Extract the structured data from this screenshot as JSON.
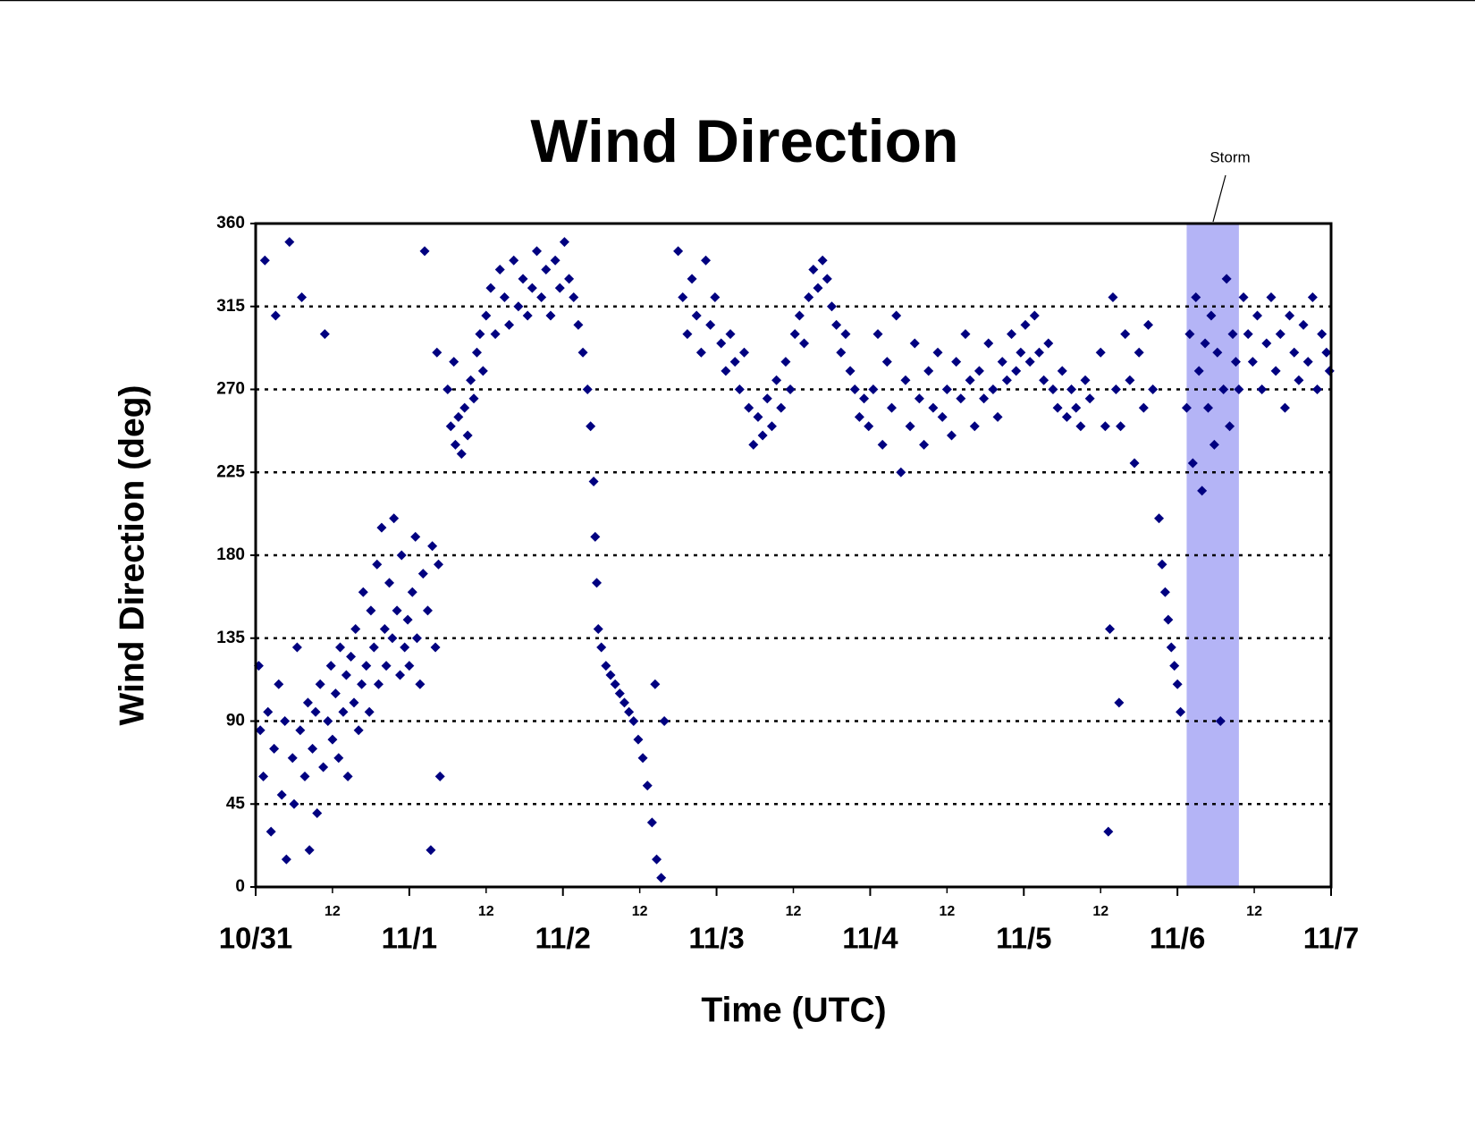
{
  "chart_data": {
    "type": "scatter",
    "title": "Wind Direction",
    "xlabel": "Time (UTC)",
    "ylabel": "Wind Direction (deg)",
    "xlim": [
      0,
      7
    ],
    "ylim": [
      0,
      360
    ],
    "xticks": [
      {
        "value": 0,
        "label": "10/31"
      },
      {
        "value": 1,
        "label": "11/1"
      },
      {
        "value": 2,
        "label": "11/2"
      },
      {
        "value": 3,
        "label": "11/3"
      },
      {
        "value": 4,
        "label": "11/4"
      },
      {
        "value": 5,
        "label": "11/5"
      },
      {
        "value": 6,
        "label": "11/6"
      },
      {
        "value": 7,
        "label": "11/7"
      }
    ],
    "xminor_ticks": [
      {
        "value": 0.5,
        "label": "12"
      },
      {
        "value": 1.5,
        "label": "12"
      },
      {
        "value": 2.5,
        "label": "12"
      },
      {
        "value": 3.5,
        "label": "12"
      },
      {
        "value": 4.5,
        "label": "12"
      },
      {
        "value": 5.5,
        "label": "12"
      },
      {
        "value": 6.5,
        "label": "12"
      }
    ],
    "yticks": [
      0,
      45,
      90,
      135,
      180,
      225,
      270,
      315,
      360
    ],
    "grid": true,
    "color": "#000080",
    "shaded_region": {
      "label": "Storm",
      "xlim": [
        6.06,
        6.4
      ],
      "color": "#b4b4f6"
    },
    "x": [
      0.02,
      0.03,
      0.05,
      0.06,
      0.08,
      0.1,
      0.12,
      0.13,
      0.15,
      0.17,
      0.19,
      0.2,
      0.22,
      0.24,
      0.25,
      0.27,
      0.29,
      0.3,
      0.32,
      0.34,
      0.35,
      0.37,
      0.39,
      0.4,
      0.42,
      0.44,
      0.45,
      0.47,
      0.49,
      0.5,
      0.52,
      0.54,
      0.55,
      0.57,
      0.59,
      0.6,
      0.62,
      0.64,
      0.65,
      0.67,
      0.69,
      0.7,
      0.72,
      0.74,
      0.75,
      0.77,
      0.79,
      0.8,
      0.82,
      0.84,
      0.85,
      0.87,
      0.89,
      0.9,
      0.92,
      0.94,
      0.95,
      0.97,
      0.99,
      1.0,
      1.02,
      1.04,
      1.05,
      1.07,
      1.09,
      1.1,
      1.12,
      1.14,
      1.15,
      1.17,
      1.18,
      1.19,
      1.2,
      1.25,
      1.27,
      1.29,
      1.3,
      1.32,
      1.34,
      1.36,
      1.38,
      1.4,
      1.42,
      1.44,
      1.46,
      1.48,
      1.5,
      1.53,
      1.56,
      1.59,
      1.62,
      1.65,
      1.68,
      1.71,
      1.74,
      1.77,
      1.8,
      1.83,
      1.86,
      1.89,
      1.92,
      1.95,
      1.98,
      2.01,
      2.04,
      2.07,
      2.1,
      2.13,
      2.16,
      2.18,
      2.2,
      2.21,
      2.22,
      2.23,
      2.25,
      2.28,
      2.31,
      2.34,
      2.37,
      2.4,
      2.43,
      2.46,
      2.49,
      2.52,
      2.55,
      2.58,
      2.61,
      2.64,
      2.6,
      2.66,
      2.75,
      2.78,
      2.81,
      2.84,
      2.87,
      2.9,
      2.93,
      2.96,
      2.99,
      3.03,
      3.06,
      3.09,
      3.12,
      3.15,
      3.18,
      3.21,
      3.24,
      3.27,
      3.3,
      3.33,
      3.36,
      3.39,
      3.42,
      3.45,
      3.48,
      3.51,
      3.54,
      3.57,
      3.6,
      3.63,
      3.66,
      3.69,
      3.72,
      3.75,
      3.78,
      3.81,
      3.84,
      3.87,
      3.9,
      3.93,
      3.96,
      3.99,
      4.02,
      4.05,
      4.08,
      4.11,
      4.14,
      4.17,
      4.2,
      4.23,
      4.26,
      4.29,
      4.32,
      4.35,
      4.38,
      4.41,
      4.44,
      4.47,
      4.5,
      4.53,
      4.56,
      4.59,
      4.62,
      4.65,
      4.68,
      4.71,
      4.74,
      4.77,
      4.8,
      4.83,
      4.86,
      4.89,
      4.92,
      4.95,
      4.98,
      5.01,
      5.04,
      5.07,
      5.1,
      5.13,
      5.16,
      5.19,
      5.22,
      5.25,
      5.28,
      5.31,
      5.34,
      5.37,
      5.4,
      5.43,
      5.5,
      5.53,
      5.55,
      5.56,
      5.58,
      5.6,
      5.62,
      5.63,
      5.66,
      5.69,
      5.72,
      5.75,
      5.78,
      5.81,
      5.84,
      5.88,
      5.9,
      5.92,
      5.94,
      5.96,
      5.98,
      6.0,
      6.02,
      6.06,
      6.08,
      6.1,
      6.12,
      6.14,
      6.16,
      6.18,
      6.2,
      6.22,
      6.24,
      6.26,
      6.28,
      6.3,
      6.32,
      6.34,
      6.36,
      6.38,
      6.4,
      6.43,
      6.46,
      6.49,
      6.52,
      6.55,
      6.58,
      6.61,
      6.64,
      6.67,
      6.7,
      6.73,
      6.76,
      6.79,
      6.82,
      6.85,
      6.88,
      6.91,
      6.94,
      6.97,
      6.99
    ],
    "values": [
      120,
      85,
      60,
      340,
      95,
      30,
      75,
      310,
      110,
      50,
      90,
      15,
      350,
      70,
      45,
      130,
      85,
      320,
      60,
      100,
      20,
      75,
      95,
      40,
      110,
      65,
      300,
      90,
      120,
      80,
      105,
      70,
      130,
      95,
      115,
      60,
      125,
      100,
      140,
      85,
      110,
      160,
      120,
      95,
      150,
      130,
      175,
      110,
      195,
      140,
      120,
      165,
      135,
      200,
      150,
      115,
      180,
      130,
      145,
      120,
      160,
      190,
      135,
      110,
      170,
      345,
      150,
      20,
      185,
      130,
      290,
      175,
      60,
      270,
      250,
      285,
      240,
      255,
      235,
      260,
      245,
      275,
      265,
      290,
      300,
      280,
      310,
      325,
      300,
      335,
      320,
      305,
      340,
      315,
      330,
      310,
      325,
      345,
      320,
      335,
      310,
      340,
      325,
      350,
      330,
      320,
      305,
      290,
      270,
      250,
      220,
      190,
      165,
      140,
      130,
      120,
      115,
      110,
      105,
      100,
      95,
      90,
      80,
      70,
      55,
      35,
      15,
      5,
      110,
      90,
      345,
      320,
      300,
      330,
      310,
      290,
      340,
      305,
      320,
      295,
      280,
      300,
      285,
      270,
      290,
      260,
      240,
      255,
      245,
      265,
      250,
      275,
      260,
      285,
      270,
      300,
      310,
      295,
      320,
      335,
      325,
      340,
      330,
      315,
      305,
      290,
      300,
      280,
      270,
      255,
      265,
      250,
      270,
      300,
      240,
      285,
      260,
      310,
      225,
      275,
      250,
      295,
      265,
      240,
      280,
      260,
      290,
      255,
      270,
      245,
      285,
      265,
      300,
      275,
      250,
      280,
      265,
      295,
      270,
      255,
      285,
      275,
      300,
      280,
      290,
      305,
      285,
      310,
      290,
      275,
      295,
      270,
      260,
      280,
      255,
      270,
      260,
      250,
      275,
      265,
      290,
      250,
      30,
      140,
      320,
      270,
      100,
      250,
      300,
      275,
      230,
      290,
      260,
      305,
      270,
      200,
      175,
      160,
      145,
      130,
      120,
      110,
      95,
      260,
      300,
      230,
      320,
      280,
      215,
      295,
      260,
      310,
      240,
      290,
      90,
      270,
      330,
      250,
      300,
      285,
      270,
      320,
      300,
      285,
      310,
      270,
      295,
      320,
      280,
      300,
      260,
      310,
      290,
      275,
      305,
      285,
      320,
      270,
      300,
      290,
      280
    ]
  }
}
